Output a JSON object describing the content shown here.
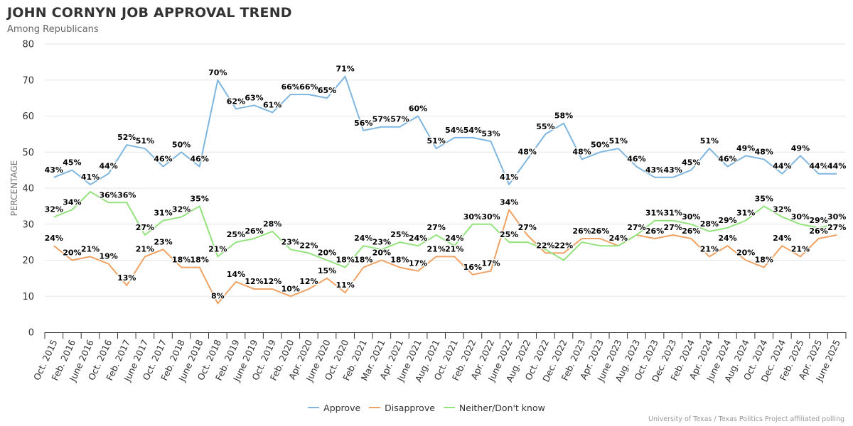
{
  "title": "JOHN CORNYN JOB APPROVAL TREND",
  "subtitle": "Among Republicans",
  "source": "University of Texas / Texas Politics Project affiliated polling",
  "chart_data": {
    "type": "line",
    "ylabel": "PERCENTAGE",
    "xlabel": "",
    "ylim": [
      0,
      80
    ],
    "yticks": [
      0,
      10,
      20,
      30,
      40,
      50,
      60,
      70,
      80
    ],
    "grid": true,
    "legend_position": "bottom",
    "categories": [
      "Oct. 2015",
      "Feb. 2016",
      "June 2016",
      "Oct. 2016",
      "Feb. 2017",
      "June 2017",
      "Oct. 2017",
      "Feb. 2018",
      "June 2018",
      "Oct. 2018",
      "Feb. 2019",
      "June 2019",
      "Oct. 2019",
      "Feb. 2020",
      "Apr. 2020",
      "June 2020",
      "Oct. 2020",
      "Feb. 2021",
      "Mar. 2021",
      "Apr. 2021",
      "June 2021",
      "Aug. 2021",
      "Oct. 2021",
      "Feb. 2022",
      "Apr. 2022",
      "June 2022",
      "Aug. 2022",
      "Oct. 2022",
      "Dec. 2022",
      "Feb. 2023",
      "Apr. 2023",
      "June 2023",
      "Aug. 2023",
      "Oct. 2023",
      "Dec. 2023",
      "Feb. 2024",
      "Apr. 2024",
      "June 2024",
      "Aug. 2024",
      "Oct. 2024",
      "Dec. 2024",
      "Feb. 2025",
      "Apr. 2025",
      "June 2025"
    ],
    "series": [
      {
        "name": "Approve",
        "color": "#7eb6e0",
        "values": [
          43,
          45,
          41,
          44,
          52,
          51,
          46,
          50,
          46,
          70,
          62,
          63,
          61,
          66,
          66,
          65,
          71,
          56,
          57,
          57,
          60,
          51,
          54,
          54,
          53,
          41,
          48,
          55,
          58,
          48,
          50,
          51,
          46,
          43,
          43,
          45,
          51,
          46,
          49,
          48,
          44,
          49,
          44,
          44
        ]
      },
      {
        "name": "Disapprove",
        "color": "#f0a264",
        "values": [
          24,
          20,
          21,
          19,
          13,
          21,
          23,
          18,
          18,
          8,
          14,
          12,
          12,
          10,
          12,
          15,
          11,
          18,
          20,
          18,
          17,
          21,
          21,
          16,
          17,
          34,
          27,
          22,
          22,
          26,
          26,
          24,
          27,
          26,
          27,
          26,
          21,
          24,
          20,
          18,
          24,
          21,
          26,
          27
        ]
      },
      {
        "name": "Neither/Don't know",
        "color": "#93e37d",
        "values": [
          32,
          34,
          39,
          36,
          36,
          27,
          31,
          32,
          35,
          21,
          25,
          26,
          28,
          23,
          22,
          20,
          18,
          24,
          23,
          25,
          24,
          27,
          24,
          30,
          30,
          25,
          25,
          23,
          20,
          25,
          24,
          24,
          27,
          31,
          31,
          30,
          28,
          29,
          31,
          35,
          32,
          30,
          29,
          30
        ]
      }
    ],
    "labels_shown": {
      "Approve": [
        43,
        45,
        41,
        44,
        52,
        51,
        46,
        50,
        46,
        70,
        62,
        63,
        61,
        66,
        66,
        65,
        71,
        56,
        57,
        57,
        60,
        51,
        54,
        54,
        53,
        41,
        48,
        55,
        58,
        48,
        50,
        51,
        46,
        43,
        43,
        45,
        51,
        46,
        49,
        48,
        44,
        49,
        44,
        44
      ],
      "Disapprove": [
        24,
        20,
        21,
        19,
        13,
        21,
        23,
        18,
        18,
        8,
        14,
        12,
        12,
        10,
        12,
        15,
        11,
        18,
        20,
        18,
        17,
        21,
        21,
        16,
        17,
        34,
        27,
        22,
        22,
        26,
        26,
        null,
        null,
        26,
        27,
        26,
        21,
        24,
        20,
        18,
        24,
        21,
        26,
        27
      ],
      "Neither/Don't know": [
        32,
        34,
        null,
        36,
        36,
        27,
        31,
        32,
        35,
        21,
        25,
        26,
        28,
        23,
        22,
        20,
        18,
        24,
        23,
        25,
        24,
        27,
        24,
        30,
        30,
        25,
        null,
        null,
        null,
        null,
        null,
        24,
        27,
        31,
        31,
        30,
        28,
        29,
        31,
        35,
        32,
        30,
        29,
        30
      ]
    }
  }
}
